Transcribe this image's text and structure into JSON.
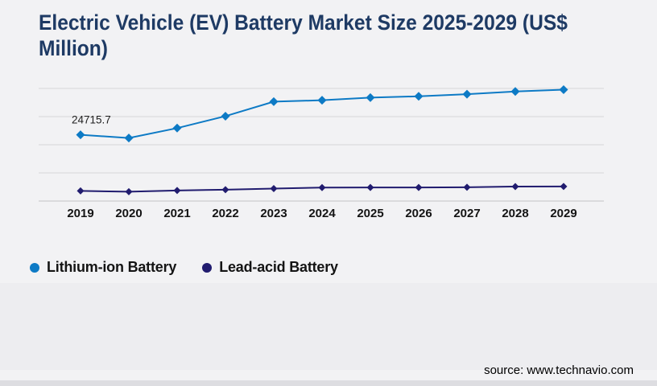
{
  "title": "Electric Vehicle (EV) Battery Market Size 2025-2029 (US$ Million)",
  "source": "source: www.technavio.com",
  "colors": {
    "background": "#f2f2f4",
    "band": "#ededf0",
    "title": "#1e3a64",
    "gridline": "#d6d6d8",
    "axis_line": "#c2c2c5",
    "lithium": "#0d7ac5",
    "lead": "#211c6f",
    "axis_label": "#141414",
    "data_label": "#1f1f1f"
  },
  "legend": {
    "position": "bottom-left",
    "items": [
      {
        "label": "Lithium-ion Battery",
        "color": "#0d7ac5",
        "marker": "circle"
      },
      {
        "label": "Lead-acid Battery",
        "color": "#211c6f",
        "marker": "circle"
      }
    ]
  },
  "chart_data": {
    "type": "line",
    "title": "Electric Vehicle (EV) Battery Market Size 2025-2029 (US$ Million)",
    "categories": [
      "2019",
      "2020",
      "2021",
      "2022",
      "2023",
      "2024",
      "2025",
      "2026",
      "2027",
      "2028",
      "2029"
    ],
    "series": [
      {
        "name": "Lithium-ion Battery",
        "color": "#0d7ac5",
        "marker": "diamond",
        "values": [
          24715.7,
          23530,
          27210,
          31660,
          37090,
          37600,
          38570,
          39080,
          39850,
          40860,
          41540
        ]
      },
      {
        "name": "Lead-acid Battery",
        "color": "#211c6f",
        "marker": "diamond",
        "values": [
          3770,
          3500,
          3950,
          4250,
          4650,
          5040,
          5050,
          5060,
          5150,
          5400,
          5420
        ]
      }
    ],
    "data_labels": [
      {
        "series": 0,
        "index": 0,
        "text": "24715.7"
      }
    ],
    "xlabel": "",
    "ylabel": "",
    "ylim": [
      0,
      42000
    ],
    "y_axis_labels": false,
    "grid": "horizontal",
    "gridline_count": 5,
    "legend_position": "bottom-left"
  }
}
